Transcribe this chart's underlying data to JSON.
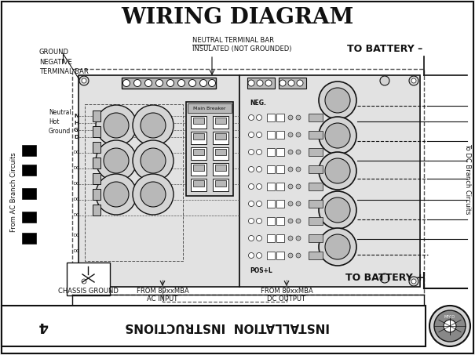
{
  "title": "WIRING DIAGRAM",
  "title_fontsize": 20,
  "bg_color": "#f5f5f5",
  "line_color": "#111111",
  "dashed_color": "#555555",
  "white": "#ffffff",
  "gray_light": "#d4d4d4",
  "gray_med": "#b8b8b8",
  "gray_dark": "#888888",
  "label_ground_neg": "GROUND\nNEGATIVE\nTERMINAL BAR",
  "label_neutral_bar_1": "NEUTRAL TERMINAL BAR",
  "label_neutral_bar_2": "INSULATED (NOT GROUNDED)",
  "label_battery_neg": "TO BATTERY –",
  "label_battery_pos": "TO BATTERY +",
  "label_dc_branch": "To DC Branch Circuits",
  "label_ac_branch": "From AC Branch Circuits",
  "label_chassis": "CHASSIS GROUND",
  "label_ac_input_1": "FROM 89xxMBA",
  "label_ac_input_2": "AC INPUT",
  "label_dc_output_1": "FROM 89xxMBA",
  "label_dc_output_2": "DC OUTPUT",
  "label_neutral": "Neutral",
  "label_hot": "Hot",
  "label_ground_left": "Ground",
  "label_neg": "NEG.",
  "label_main_breaker": "Main Breaker",
  "label_posl": "POS+L",
  "footer_number": "4",
  "footer_text": "INSTALLATION  INSTRUCTIONS",
  "page_bg": "#f0f0f0",
  "inner_bg": "#e2e2e2"
}
